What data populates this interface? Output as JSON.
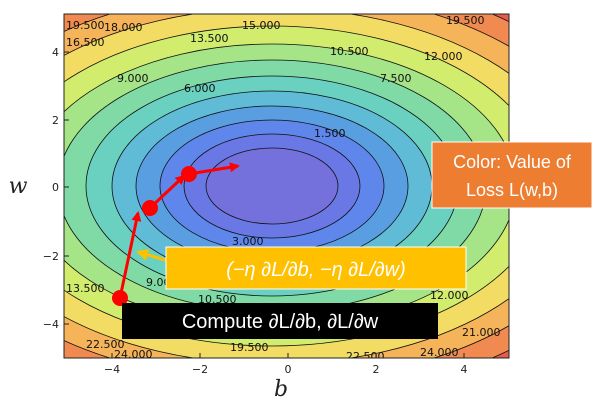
{
  "axes": {
    "xlabel": "b",
    "ylabel": "w",
    "xticks": [
      "−4",
      "−2",
      "0",
      "2",
      "4"
    ],
    "yticks": [
      "4",
      "2",
      "0",
      "−2",
      "−4"
    ]
  },
  "contour_labels": [
    "19.500",
    "18.000",
    "16.500",
    "15.000",
    "13.500",
    "10.500",
    "12.000",
    "19.500",
    "9.000",
    "6.000",
    "7.500",
    "1.500",
    "3.000",
    "9.000",
    "13.500",
    "10.500",
    "12.000",
    "21.000",
    "22.500",
    "24.000",
    "19.500",
    "22.500",
    "24.000"
  ],
  "callouts": {
    "color_note": "Color: Value of Loss L(w,b)",
    "update_rule": "(−η ∂L/∂b, −η ∂L/∂w)",
    "compute": "Compute ∂L/∂b, ∂L/∂w"
  },
  "colors": {
    "path": "#ff0000",
    "color_note_bg": "#ed7d31",
    "update_bg": "#ffc000",
    "compute_bg": "#000000"
  }
}
